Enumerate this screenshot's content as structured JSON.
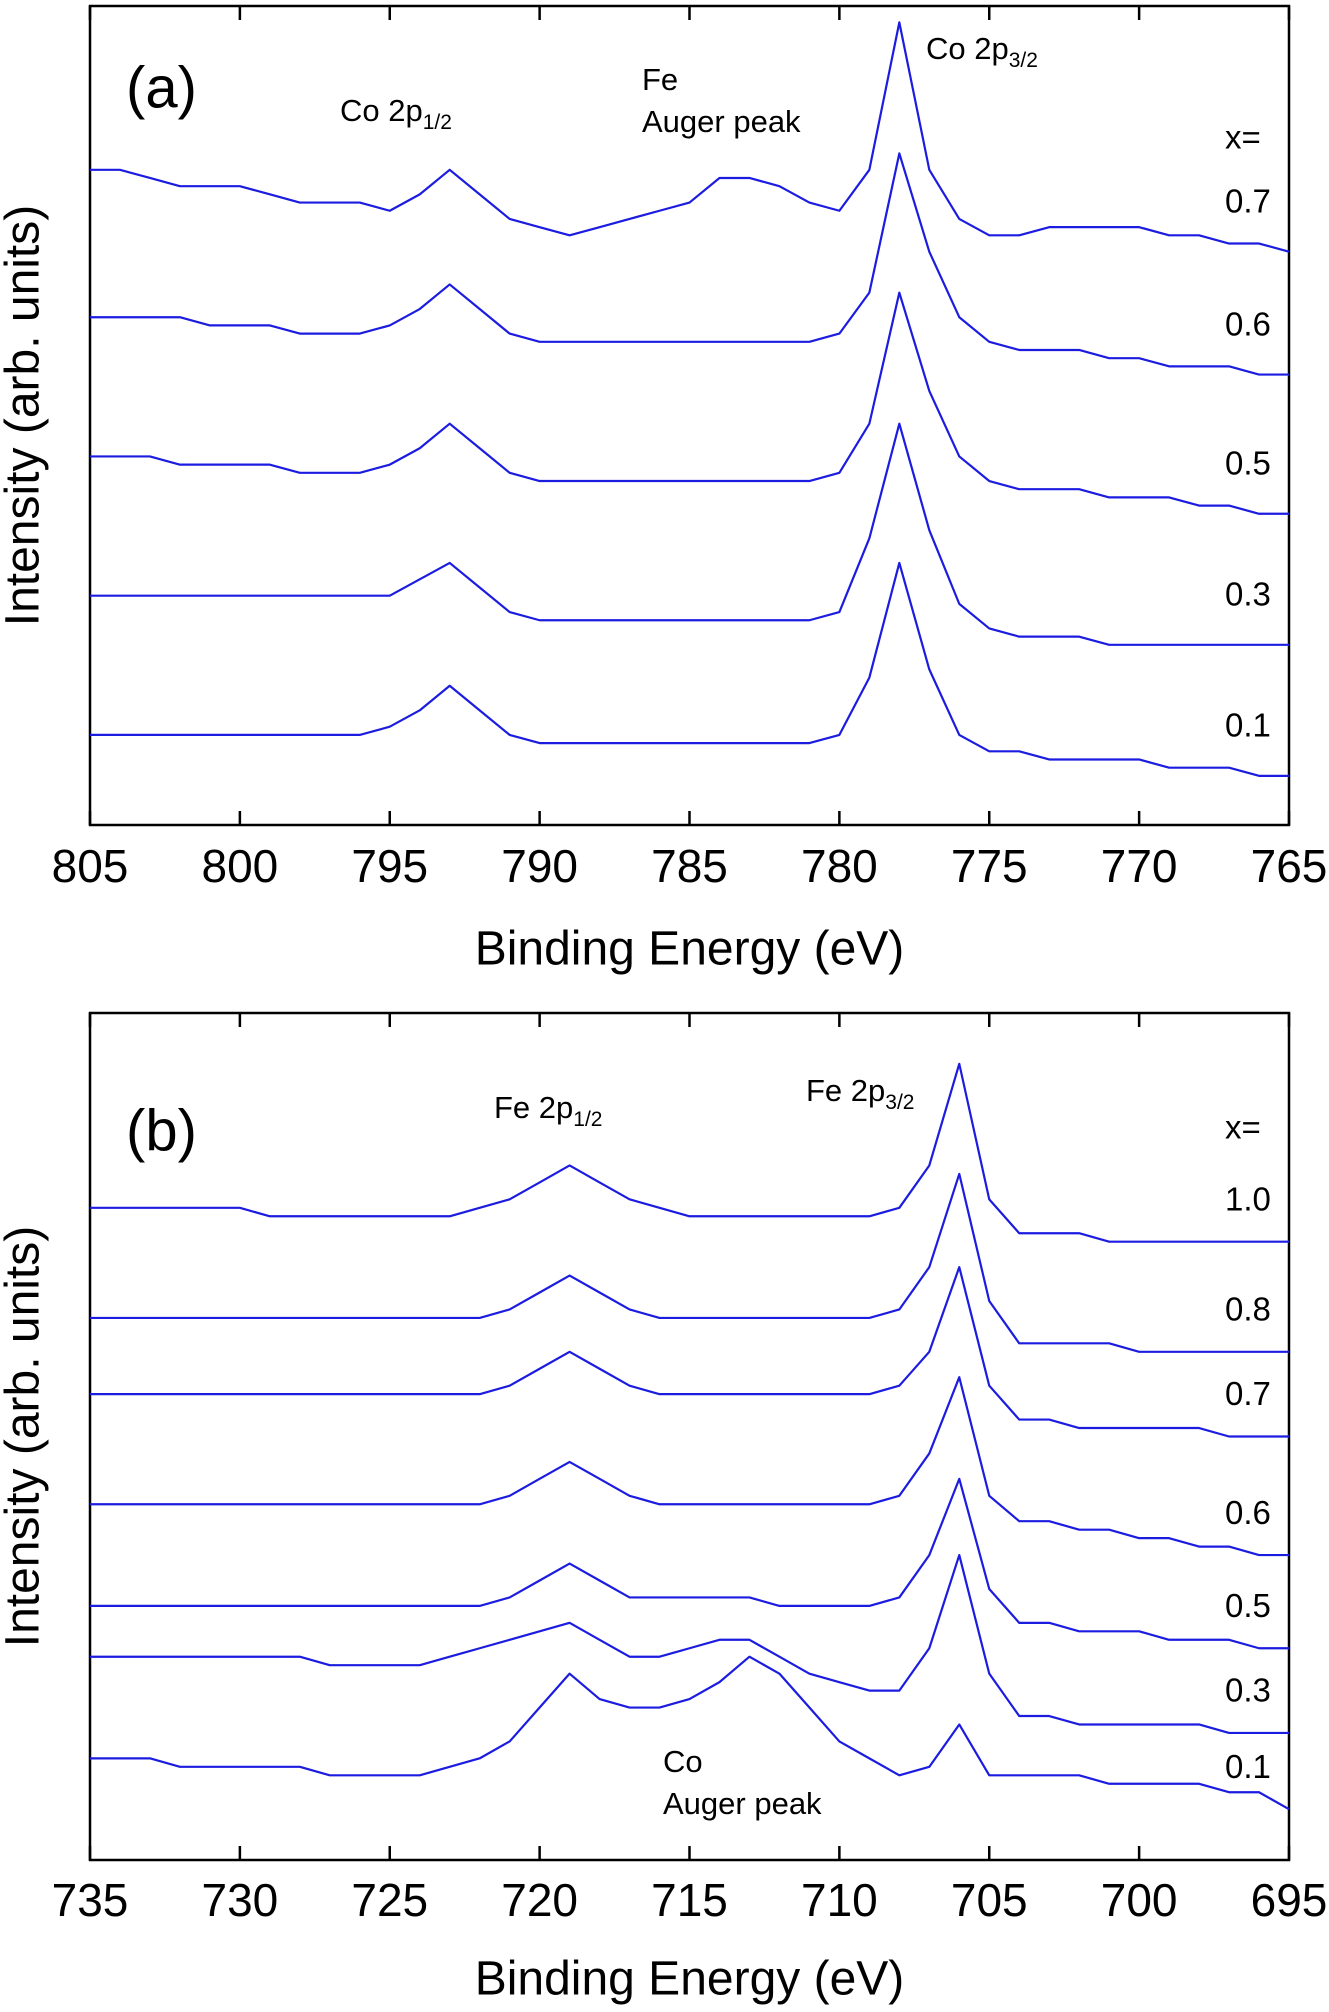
{
  "chart_data": [
    {
      "type": "line",
      "panel_label": "(a)",
      "xlabel": "Binding Energy  (eV)",
      "ylabel": "Intensity  (arb. units)",
      "xlim": [
        805,
        765
      ],
      "xticks": [
        805,
        800,
        795,
        790,
        785,
        780,
        775,
        770,
        765
      ],
      "ylim": [
        0,
        100
      ],
      "legend_title": "x=",
      "annotations": [
        {
          "text": "Co 2p",
          "subscript": "1/2"
        },
        {
          "lines": [
            "Fe",
            "Auger peak"
          ]
        },
        {
          "text": "Co 2p",
          "subscript": "3/2"
        }
      ],
      "x": [
        805,
        804,
        803,
        802,
        801,
        800,
        799,
        798,
        797,
        796,
        795,
        794,
        793,
        792,
        791,
        790,
        789,
        788,
        787,
        786,
        785,
        784,
        783,
        782,
        781,
        780,
        779,
        778,
        777,
        776,
        775,
        774,
        773,
        772,
        771,
        770,
        769,
        768,
        767,
        766,
        765
      ],
      "series": [
        {
          "name": "0.7",
          "color": "#1c1ce0",
          "values": [
            80,
            80,
            79,
            78,
            78,
            78,
            77,
            76,
            76,
            76,
            75,
            77,
            80,
            77,
            74,
            73,
            72,
            73,
            74,
            75,
            76,
            79,
            79,
            78,
            76,
            75,
            80,
            98,
            80,
            74,
            72,
            72,
            73,
            73,
            73,
            73,
            72,
            72,
            71,
            71,
            70
          ]
        },
        {
          "name": "0.6",
          "color": "#1c1ce0",
          "values": [
            62,
            62,
            62,
            62,
            61,
            61,
            61,
            60,
            60,
            60,
            61,
            63,
            66,
            63,
            60,
            59,
            59,
            59,
            59,
            59,
            59,
            59,
            59,
            59,
            59,
            60,
            65,
            82,
            70,
            62,
            59,
            58,
            58,
            58,
            57,
            57,
            56,
            56,
            56,
            55,
            55
          ]
        },
        {
          "name": "0.5",
          "color": "#1c1ce0",
          "values": [
            45,
            45,
            45,
            44,
            44,
            44,
            44,
            43,
            43,
            43,
            44,
            46,
            49,
            46,
            43,
            42,
            42,
            42,
            42,
            42,
            42,
            42,
            42,
            42,
            42,
            43,
            49,
            65,
            53,
            45,
            42,
            41,
            41,
            41,
            40,
            40,
            40,
            39,
            39,
            38,
            38
          ]
        },
        {
          "name": "0.3",
          "color": "#1c1ce0",
          "values": [
            28,
            28,
            28,
            28,
            28,
            28,
            28,
            28,
            28,
            28,
            28,
            30,
            32,
            29,
            26,
            25,
            25,
            25,
            25,
            25,
            25,
            25,
            25,
            25,
            25,
            26,
            35,
            49,
            36,
            27,
            24,
            23,
            23,
            23,
            22,
            22,
            22,
            22,
            22,
            22,
            22
          ]
        },
        {
          "name": "0.1",
          "color": "#1c1ce0",
          "values": [
            11,
            11,
            11,
            11,
            11,
            11,
            11,
            11,
            11,
            11,
            12,
            14,
            17,
            14,
            11,
            10,
            10,
            10,
            10,
            10,
            10,
            10,
            10,
            10,
            10,
            11,
            18,
            32,
            19,
            11,
            9,
            9,
            8,
            8,
            8,
            8,
            7,
            7,
            7,
            6,
            6
          ]
        }
      ]
    },
    {
      "type": "line",
      "panel_label": "(b)",
      "xlabel": "Binding Energy  (eV)",
      "ylabel": "Intensity  (arb. units)",
      "xlim": [
        735,
        695
      ],
      "xticks": [
        735,
        730,
        725,
        720,
        715,
        710,
        705,
        700,
        695
      ],
      "ylim": [
        0,
        100
      ],
      "legend_title": "x=",
      "annotations": [
        {
          "text": "Fe 2p",
          "subscript": "1/2"
        },
        {
          "text": "Fe 2p",
          "subscript": "3/2"
        },
        {
          "lines": [
            "Co",
            "Auger peak"
          ]
        }
      ],
      "x": [
        735,
        734,
        733,
        732,
        731,
        730,
        729,
        728,
        727,
        726,
        725,
        724,
        723,
        722,
        721,
        720,
        719,
        718,
        717,
        716,
        715,
        714,
        713,
        712,
        711,
        710,
        709,
        708,
        707,
        706,
        705,
        704,
        703,
        702,
        701,
        700,
        699,
        698,
        697,
        696,
        695
      ],
      "series": [
        {
          "name": "1.0",
          "color": "#1c1ce0",
          "values": [
            77,
            77,
            77,
            77,
            77,
            77,
            76,
            76,
            76,
            76,
            76,
            76,
            76,
            77,
            78,
            80,
            82,
            80,
            78,
            77,
            76,
            76,
            76,
            76,
            76,
            76,
            76,
            77,
            82,
            94,
            78,
            74,
            74,
            74,
            73,
            73,
            73,
            73,
            73,
            73,
            73
          ]
        },
        {
          "name": "0.8",
          "color": "#1c1ce0",
          "values": [
            64,
            64,
            64,
            64,
            64,
            64,
            64,
            64,
            64,
            64,
            64,
            64,
            64,
            64,
            65,
            67,
            69,
            67,
            65,
            64,
            64,
            64,
            64,
            64,
            64,
            64,
            64,
            65,
            70,
            81,
            66,
            61,
            61,
            61,
            61,
            60,
            60,
            60,
            60,
            60,
            60
          ]
        },
        {
          "name": "0.7",
          "color": "#1c1ce0",
          "values": [
            55,
            55,
            55,
            55,
            55,
            55,
            55,
            55,
            55,
            55,
            55,
            55,
            55,
            55,
            56,
            58,
            60,
            58,
            56,
            55,
            55,
            55,
            55,
            55,
            55,
            55,
            55,
            56,
            60,
            70,
            56,
            52,
            52,
            51,
            51,
            51,
            51,
            51,
            50,
            50,
            50
          ]
        },
        {
          "name": "0.6",
          "color": "#1c1ce0",
          "values": [
            42,
            42,
            42,
            42,
            42,
            42,
            42,
            42,
            42,
            42,
            42,
            42,
            42,
            42,
            43,
            45,
            47,
            45,
            43,
            42,
            42,
            42,
            42,
            42,
            42,
            42,
            42,
            43,
            48,
            57,
            43,
            40,
            40,
            39,
            39,
            38,
            38,
            37,
            37,
            36,
            36
          ]
        },
        {
          "name": "0.5",
          "color": "#1c1ce0",
          "values": [
            30,
            30,
            30,
            30,
            30,
            30,
            30,
            30,
            30,
            30,
            30,
            30,
            30,
            30,
            31,
            33,
            35,
            33,
            31,
            31,
            31,
            31,
            31,
            30,
            30,
            30,
            30,
            31,
            36,
            45,
            32,
            28,
            28,
            27,
            27,
            27,
            26,
            26,
            26,
            25,
            25
          ]
        },
        {
          "name": "0.3",
          "color": "#1c1ce0",
          "values": [
            24,
            24,
            24,
            24,
            24,
            24,
            24,
            24,
            23,
            23,
            23,
            23,
            24,
            25,
            26,
            27,
            28,
            26,
            24,
            24,
            25,
            26,
            26,
            24,
            22,
            21,
            20,
            20,
            25,
            36,
            22,
            17,
            17,
            16,
            16,
            16,
            16,
            16,
            15,
            15,
            15
          ]
        },
        {
          "name": "0.1",
          "color": "#1c1ce0",
          "values": [
            12,
            12,
            12,
            11,
            11,
            11,
            11,
            11,
            10,
            10,
            10,
            10,
            11,
            12,
            14,
            18,
            22,
            19,
            18,
            18,
            19,
            21,
            24,
            22,
            18,
            14,
            12,
            10,
            11,
            16,
            10,
            10,
            10,
            10,
            9,
            9,
            9,
            9,
            8,
            8,
            6
          ]
        }
      ]
    }
  ]
}
